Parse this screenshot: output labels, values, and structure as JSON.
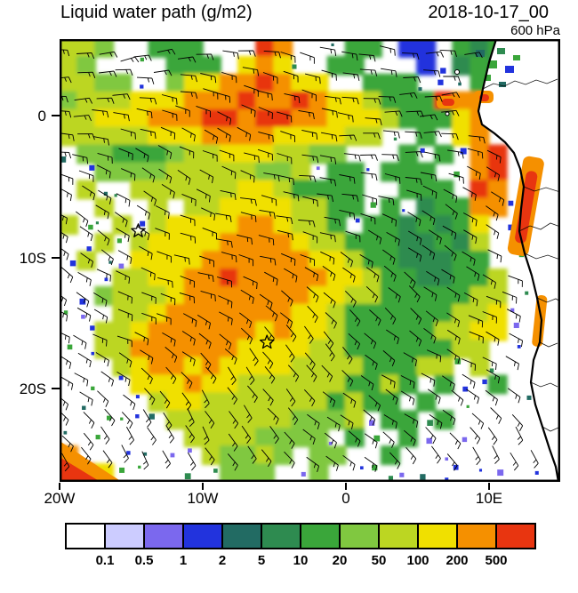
{
  "header": {
    "title": "Liquid water path (g/m2)",
    "datetime": "2018-10-17_00",
    "level": "600 hPa"
  },
  "axes": {
    "y_ticks": [
      "0",
      "10S",
      "20S"
    ],
    "x_ticks": [
      "20W",
      "10W",
      "0",
      "10E"
    ]
  },
  "colorbar": {
    "labels": [
      "0.1",
      "0.5",
      "1",
      "2",
      "5",
      "10",
      "20",
      "50",
      "100",
      "200",
      "500"
    ],
    "colors": [
      "#ffffff",
      "#ccccff",
      "#7b68ee",
      "#2233dd",
      "#226b63",
      "#2e8b50",
      "#3aa63a",
      "#80c840",
      "#bcd622",
      "#f0e000",
      "#f59000",
      "#e83510"
    ]
  },
  "chart_data": {
    "type": "heatmap",
    "title": "Liquid water path (g/m2)",
    "datetime": "2018-10-17_00",
    "pressure_level": "600 hPa",
    "units": "g/m2",
    "lon_range": [
      -20,
      15
    ],
    "lat_range": [
      -27,
      6
    ],
    "x_tick_lons": [
      -20,
      -10,
      0,
      10
    ],
    "y_tick_lats": [
      0,
      -10,
      -20
    ],
    "levels": [
      0.1,
      0.5,
      1,
      2,
      5,
      10,
      20,
      50,
      100,
      200,
      500
    ],
    "palette": [
      "#ffffff",
      "#ccccff",
      "#7b68ee",
      "#2233dd",
      "#226b63",
      "#2e8b50",
      "#3aa63a",
      "#80c840",
      "#bcd622",
      "#f0e000",
      "#f59000",
      "#e83510"
    ],
    "grid_note": "coarse 28x25 category grid over lon -20..15, lat 6..-27; chars 0-9,a,b index palette bins <0.1 .. >500 g/m2",
    "grid_rows": [
      "88700666000ba000660330656000",
      "87000066609a9006600030565000",
      "887700799aaba990066600060000",
      "7888999aaabaaba998666baa0000",
      "88999aaabbabbaa99986669a0000",
      "88888999aaaa99998800609a0000",
      "07766678899988770006060ab000",
      "00777788888778066066600ab000",
      "08008888889986666006660ba000",
      "00800808899998866060566aa000",
      "8008089999aa9886066565690000",
      "008089999aaaa988666556580000",
      "08009999aaaaaa99866555660000",
      "0008899aabaaaaa9986655668000",
      "0078889aaaaaaa99886666688000",
      "000889aaaaaaa998666666889000",
      "00889aaaaaa9a998666668899000",
      "0088aaaaaa999988666666880000",
      "00089aa9a9999888866688080000",
      "0000999a99888888668606006000",
      "0000089988888886866060000000",
      "0000008888888777806606000000",
      "0000000888877770600600000000",
      "a000000087787077006000000000",
      "bb90000007770070000000000000"
    ],
    "markers": [
      {
        "symbol": "star",
        "lon": -14.5,
        "lat": -8.3
      },
      {
        "symbol": "star",
        "lon": -5.5,
        "lat": -16.6
      }
    ],
    "overlays": {
      "wind": "barbs",
      "coastline": true
    }
  }
}
